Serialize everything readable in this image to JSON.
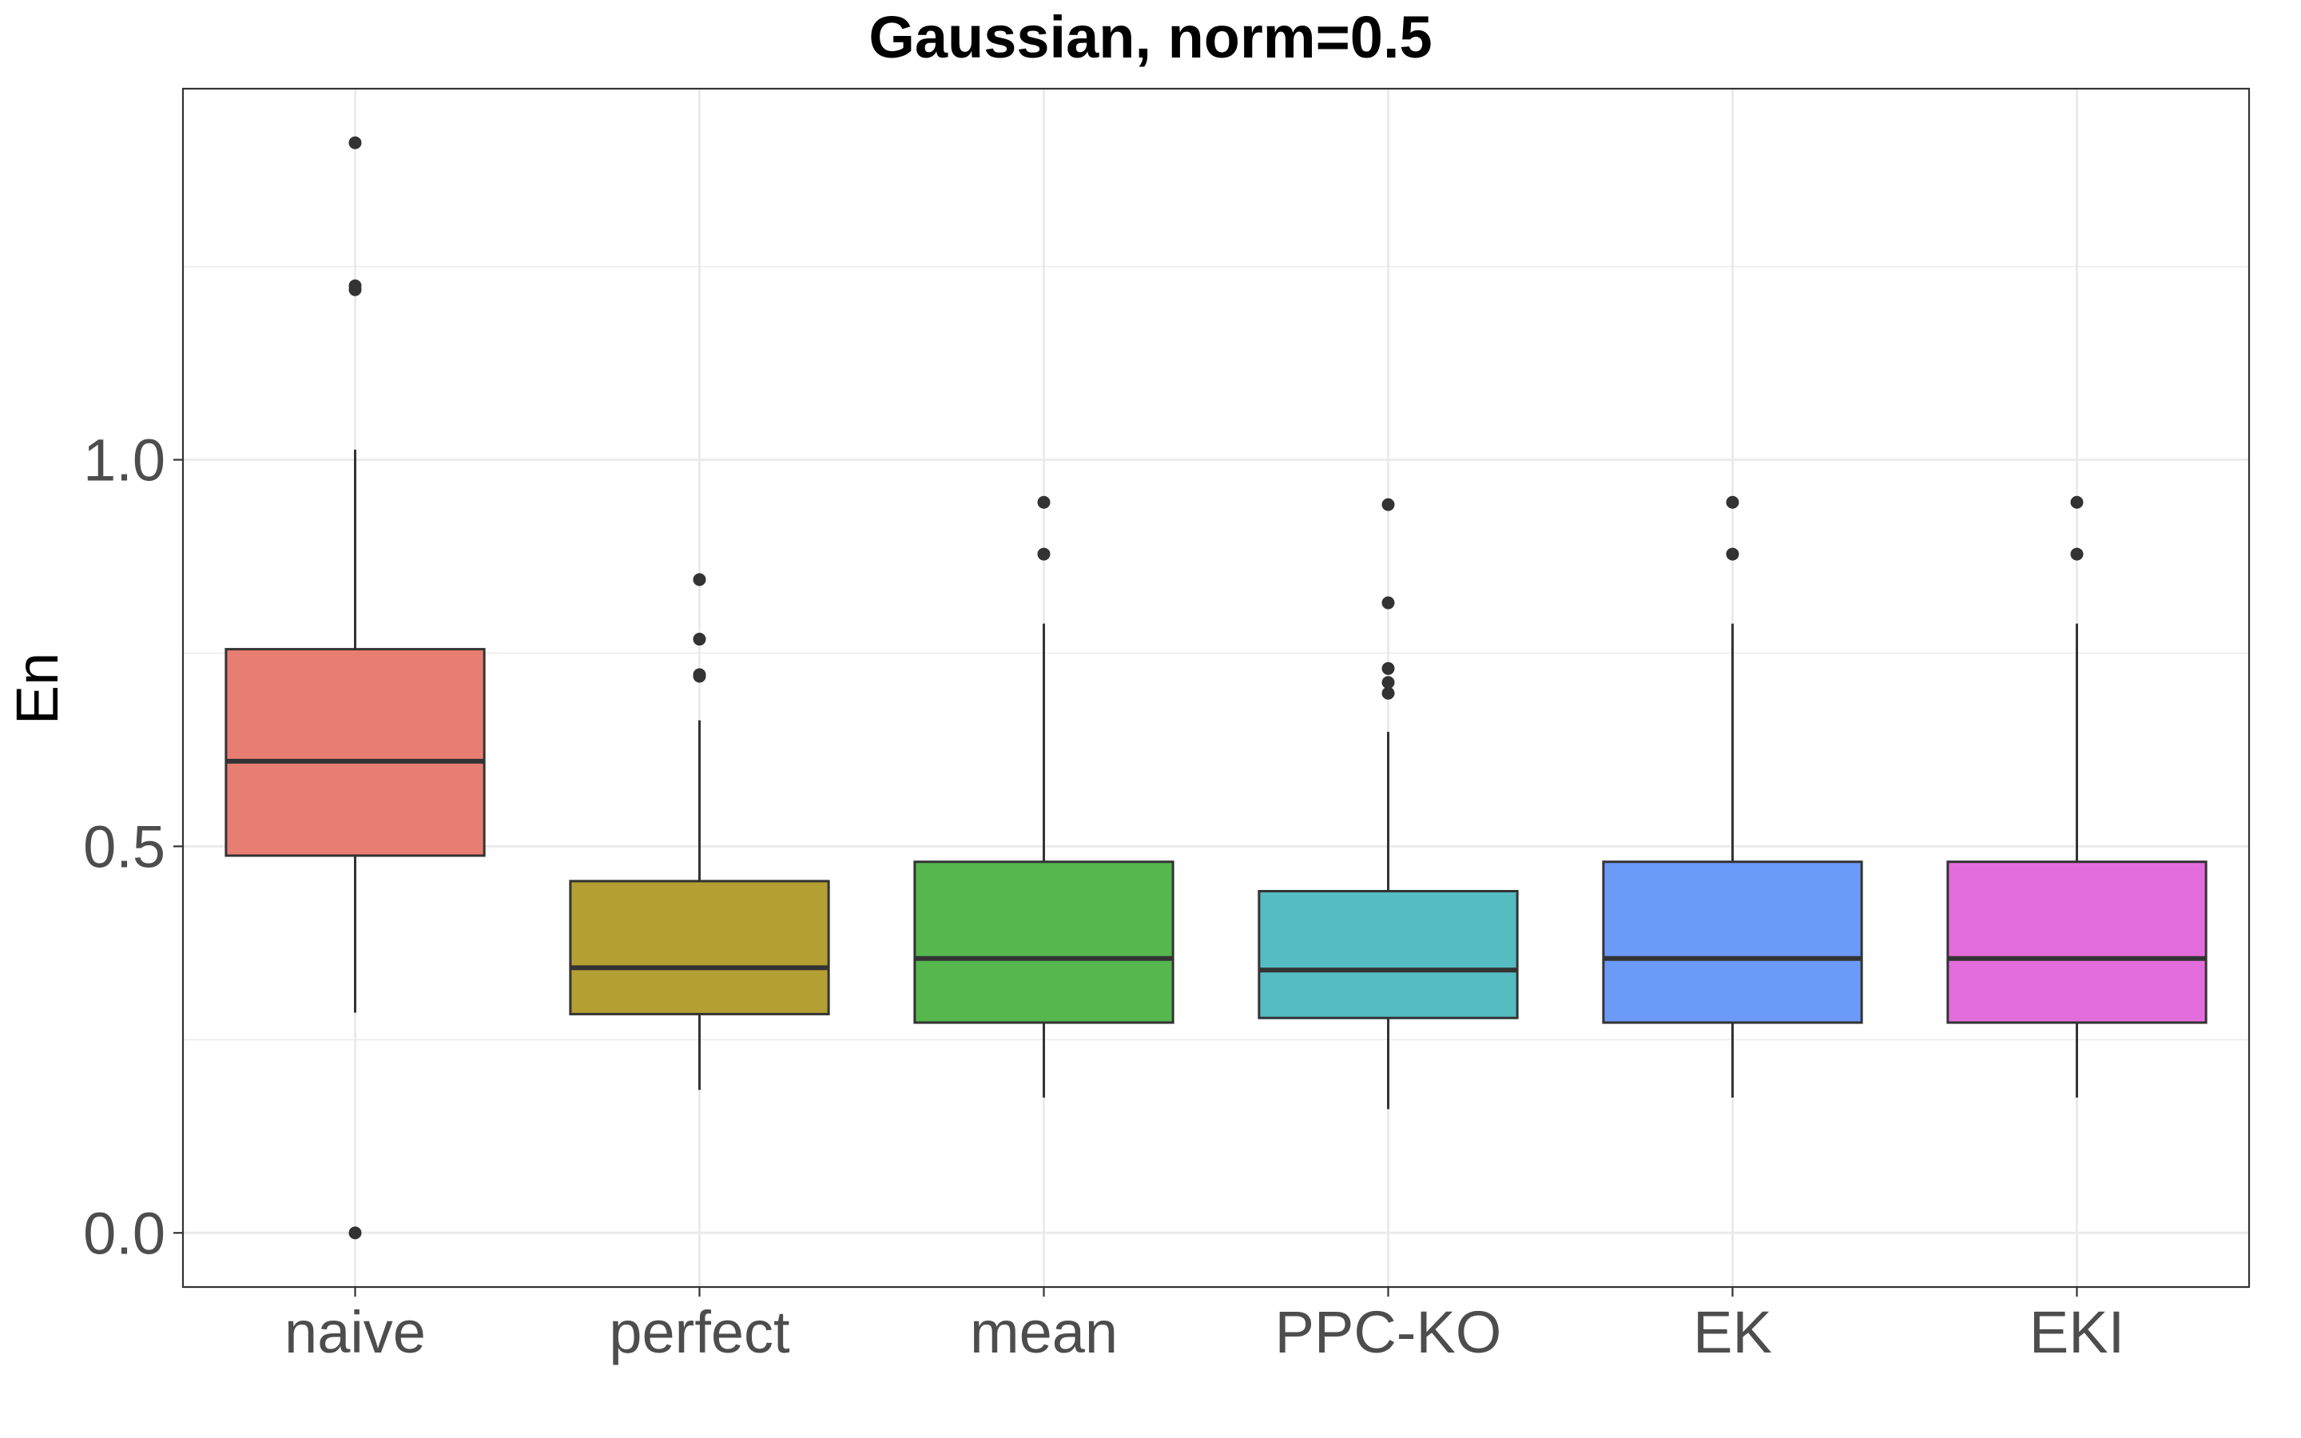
{
  "chart_data": {
    "type": "boxplot",
    "title": "Gaussian, norm=0.5",
    "xlabel": "",
    "ylabel": "En",
    "ylim": [
      -0.07,
      1.48
    ],
    "yticks": [
      0.0,
      0.5,
      1.0
    ],
    "ytick_labels": [
      "0.0",
      "0.5",
      "1.0"
    ],
    "grid": true,
    "legend": "none",
    "categories": [
      "naive",
      "perfect",
      "mean",
      "PPC-KO",
      "EK",
      "EKI"
    ],
    "boxes": [
      {
        "category": "naive",
        "color": "#E87E72",
        "whisker_low": 0.285,
        "q1": 0.488,
        "median": 0.61,
        "q3": 0.755,
        "whisker_high": 1.013,
        "outliers": [
          0.0,
          1.22,
          1.225,
          1.41
        ]
      },
      {
        "category": "perfect",
        "color": "#B49F33",
        "whisker_low": 0.185,
        "q1": 0.283,
        "median": 0.343,
        "q3": 0.455,
        "whisker_high": 0.663,
        "outliers": [
          0.72,
          0.722,
          0.768,
          0.845
        ]
      },
      {
        "category": "mean",
        "color": "#55B74E",
        "whisker_low": 0.175,
        "q1": 0.272,
        "median": 0.355,
        "q3": 0.48,
        "whisker_high": 0.788,
        "outliers": [
          0.878,
          0.945
        ]
      },
      {
        "category": "PPC-KO",
        "color": "#55BCC2",
        "whisker_low": 0.16,
        "q1": 0.278,
        "median": 0.34,
        "q3": 0.442,
        "whisker_high": 0.648,
        "outliers": [
          0.698,
          0.712,
          0.73,
          0.815,
          0.942
        ]
      },
      {
        "category": "EK",
        "color": "#6C9AF8",
        "whisker_low": 0.175,
        "q1": 0.272,
        "median": 0.355,
        "q3": 0.48,
        "whisker_high": 0.788,
        "outliers": [
          0.878,
          0.945
        ]
      },
      {
        "category": "EKI",
        "color": "#E46DDD",
        "whisker_low": 0.175,
        "q1": 0.272,
        "median": 0.355,
        "q3": 0.48,
        "whisker_high": 0.788,
        "outliers": [
          0.878,
          0.945
        ]
      }
    ]
  }
}
